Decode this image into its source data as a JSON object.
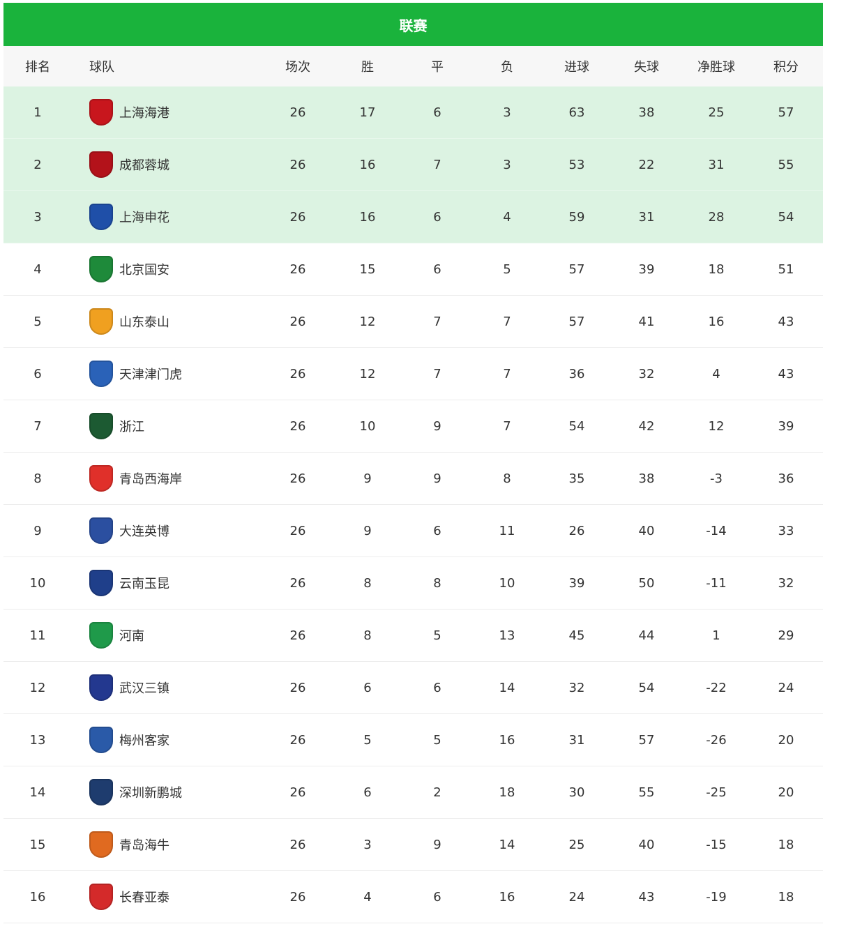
{
  "title": "联赛",
  "headers": [
    "排名",
    "球队",
    "场次",
    "胜",
    "平",
    "负",
    "进球",
    "失球",
    "净胜球",
    "积分"
  ],
  "colors": {
    "title_bg": "#1ab33c",
    "top_rows_bg": "#dcf3e2",
    "header_bg": "#f7f7f7"
  },
  "rows": [
    {
      "rank": "1",
      "team": "上海海港",
      "logo_color": "#c8161d",
      "played": "26",
      "w": "17",
      "d": "6",
      "l": "3",
      "gf": "63",
      "ga": "38",
      "gd": "25",
      "pts": "57"
    },
    {
      "rank": "2",
      "team": "成都蓉城",
      "logo_color": "#b3121a",
      "played": "26",
      "w": "16",
      "d": "7",
      "l": "3",
      "gf": "53",
      "ga": "22",
      "gd": "31",
      "pts": "55"
    },
    {
      "rank": "3",
      "team": "上海申花",
      "logo_color": "#1f4fa8",
      "played": "26",
      "w": "16",
      "d": "6",
      "l": "4",
      "gf": "59",
      "ga": "31",
      "gd": "28",
      "pts": "54"
    },
    {
      "rank": "4",
      "team": "北京国安",
      "logo_color": "#1e8a3a",
      "played": "26",
      "w": "15",
      "d": "6",
      "l": "5",
      "gf": "57",
      "ga": "39",
      "gd": "18",
      "pts": "51"
    },
    {
      "rank": "5",
      "team": "山东泰山",
      "logo_color": "#f0a020",
      "played": "26",
      "w": "12",
      "d": "7",
      "l": "7",
      "gf": "57",
      "ga": "41",
      "gd": "16",
      "pts": "43"
    },
    {
      "rank": "6",
      "team": "天津津门虎",
      "logo_color": "#2a62b8",
      "played": "26",
      "w": "12",
      "d": "7",
      "l": "7",
      "gf": "36",
      "ga": "32",
      "gd": "4",
      "pts": "43"
    },
    {
      "rank": "7",
      "team": "浙江",
      "logo_color": "#1c5a32",
      "played": "26",
      "w": "10",
      "d": "9",
      "l": "7",
      "gf": "54",
      "ga": "42",
      "gd": "12",
      "pts": "39"
    },
    {
      "rank": "8",
      "team": "青岛西海岸",
      "logo_color": "#e0302a",
      "played": "26",
      "w": "9",
      "d": "9",
      "l": "8",
      "gf": "35",
      "ga": "38",
      "gd": "-3",
      "pts": "36"
    },
    {
      "rank": "9",
      "team": "大连英博",
      "logo_color": "#2b4fa0",
      "played": "26",
      "w": "9",
      "d": "6",
      "l": "11",
      "gf": "26",
      "ga": "40",
      "gd": "-14",
      "pts": "33"
    },
    {
      "rank": "10",
      "team": "云南玉昆",
      "logo_color": "#1f3f8a",
      "played": "26",
      "w": "8",
      "d": "8",
      "l": "10",
      "gf": "39",
      "ga": "50",
      "gd": "-11",
      "pts": "32"
    },
    {
      "rank": "11",
      "team": "河南",
      "logo_color": "#1f9a4a",
      "played": "26",
      "w": "8",
      "d": "5",
      "l": "13",
      "gf": "45",
      "ga": "44",
      "gd": "1",
      "pts": "29"
    },
    {
      "rank": "12",
      "team": "武汉三镇",
      "logo_color": "#23388f",
      "played": "26",
      "w": "6",
      "d": "6",
      "l": "14",
      "gf": "32",
      "ga": "54",
      "gd": "-22",
      "pts": "24"
    },
    {
      "rank": "13",
      "team": "梅州客家",
      "logo_color": "#2a5aa8",
      "played": "26",
      "w": "5",
      "d": "5",
      "l": "16",
      "gf": "31",
      "ga": "57",
      "gd": "-26",
      "pts": "20"
    },
    {
      "rank": "14",
      "team": "深圳新鹏城",
      "logo_color": "#1e3c6e",
      "played": "26",
      "w": "6",
      "d": "2",
      "l": "18",
      "gf": "30",
      "ga": "55",
      "gd": "-25",
      "pts": "20"
    },
    {
      "rank": "15",
      "team": "青岛海牛",
      "logo_color": "#e06a20",
      "played": "26",
      "w": "3",
      "d": "9",
      "l": "14",
      "gf": "25",
      "ga": "40",
      "gd": "-15",
      "pts": "18"
    },
    {
      "rank": "16",
      "team": "长春亚泰",
      "logo_color": "#d42a2a",
      "played": "26",
      "w": "4",
      "d": "6",
      "l": "16",
      "gf": "24",
      "ga": "43",
      "gd": "-19",
      "pts": "18"
    }
  ]
}
